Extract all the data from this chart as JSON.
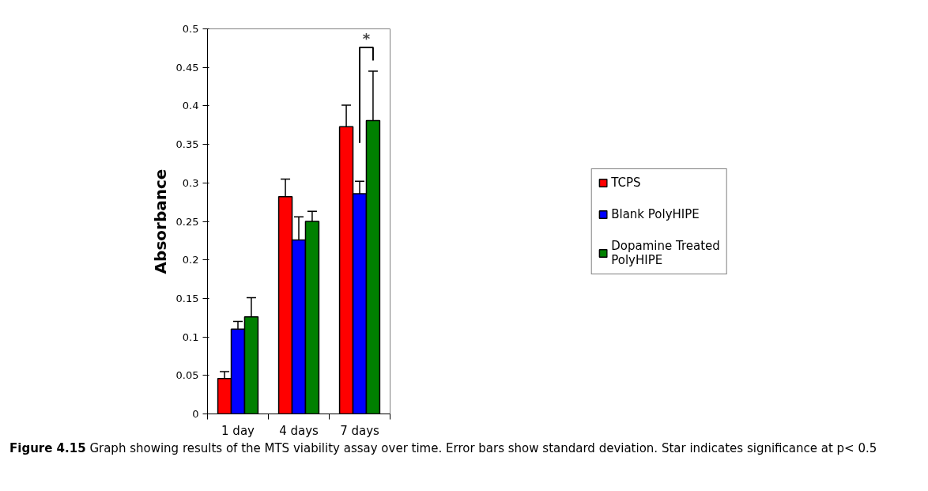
{
  "chart_data": {
    "type": "bar",
    "ylabel": "Absorbance",
    "categories": [
      "1 day",
      "4 days",
      "7 days"
    ],
    "series": [
      {
        "name": "TCPS",
        "color": "#ff0000",
        "values": [
          0.046,
          0.282,
          0.373
        ],
        "errors": [
          0.009,
          0.023,
          0.028
        ]
      },
      {
        "name": "Blank PolyHIPE",
        "color": "#0000ff",
        "values": [
          0.11,
          0.226,
          0.286
        ],
        "errors": [
          0.01,
          0.03,
          0.016
        ]
      },
      {
        "name": "Dopamine Treated PolyHIPE",
        "color": "#008000",
        "values": [
          0.126,
          0.25,
          0.381
        ],
        "errors": [
          0.025,
          0.013,
          0.064
        ]
      }
    ],
    "ylim": [
      0,
      0.5
    ],
    "yticks": [
      0,
      0.05,
      0.1,
      0.15,
      0.2,
      0.25,
      0.3,
      0.35,
      0.4,
      0.45,
      0.5
    ],
    "grid": false,
    "legend": "right",
    "annotations": [
      "*",
      "Figure 4.15",
      "Graph showing results of the MTS viability assay over time. Error bars show standard deviation. Star indicates significance at p< 0.5"
    ]
  }
}
